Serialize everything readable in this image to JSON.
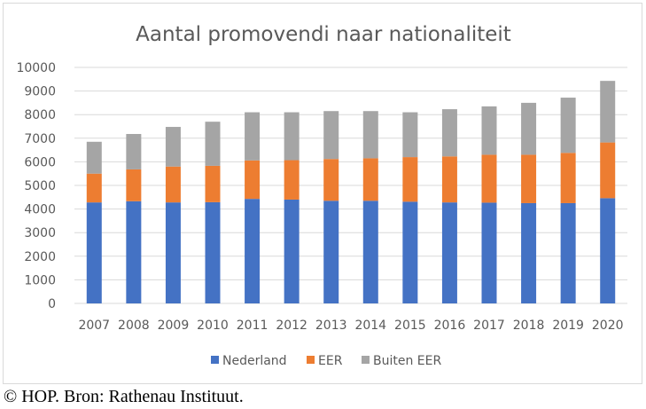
{
  "chart_data": {
    "type": "bar",
    "stacked": true,
    "title": "Aantal promovendi naar nationaliteit",
    "xlabel": "",
    "ylabel": "",
    "ylim": [
      0,
      10000
    ],
    "yticks": [
      "0",
      "1000",
      "2000",
      "3000",
      "4000",
      "5000",
      "6000",
      "7000",
      "8000",
      "9000",
      "10000"
    ],
    "grid": true,
    "legend_position": "bottom",
    "categories": [
      "2007",
      "2008",
      "2009",
      "2010",
      "2011",
      "2012",
      "2013",
      "2014",
      "2015",
      "2016",
      "2017",
      "2018",
      "2019",
      "2020"
    ],
    "series": [
      {
        "name": "Nederland",
        "color": "#4472c4",
        "values": [
          4280,
          4330,
          4280,
          4290,
          4430,
          4400,
          4350,
          4350,
          4310,
          4280,
          4270,
          4250,
          4250,
          4460
        ]
      },
      {
        "name": "EER",
        "color": "#ed7d31",
        "values": [
          1220,
          1350,
          1520,
          1540,
          1630,
          1670,
          1770,
          1800,
          1890,
          1950,
          2030,
          2050,
          2130,
          2360
        ]
      },
      {
        "name": "Buiten EER",
        "color": "#a5a5a5",
        "values": [
          1350,
          1500,
          1680,
          1870,
          2040,
          2030,
          2030,
          2000,
          1900,
          2000,
          2050,
          2200,
          2340,
          2610
        ]
      }
    ]
  },
  "footer": {
    "source": "© HOP. Bron: Rathenau Instituut."
  }
}
